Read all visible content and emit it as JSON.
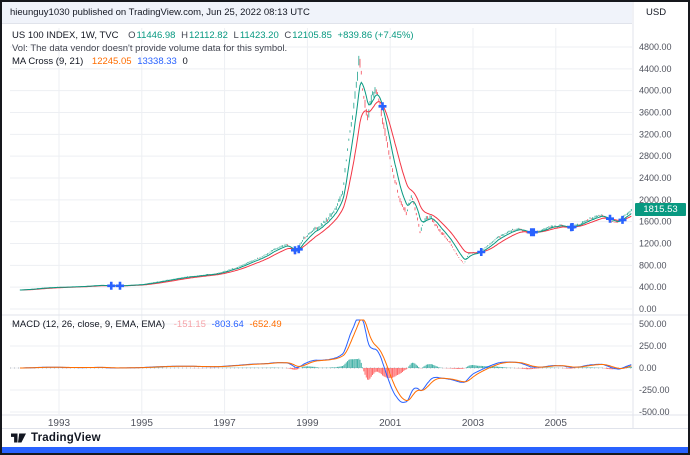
{
  "publish_bar": {
    "text": "hieunguy1030 published on TradingView.com, Jun 25, 2022 08:13 UTC"
  },
  "header": {
    "symbol": "US 100 INDEX, 1W, TVC",
    "ohlc": {
      "o_label": "O",
      "o": "11446.98",
      "h_label": "H",
      "h": "12112.82",
      "l_label": "L",
      "l": "11423.20",
      "c_label": "C",
      "c": "12105.85",
      "change": "+839.86 (+7.45%)"
    },
    "vol_note": "Vol: The data vendor doesn't provide volume data for this symbol.",
    "ma_cross": {
      "label": "MA Cross (9, 21)",
      "fast": "12245.05",
      "slow": "13338.33",
      "zero": "0"
    }
  },
  "macd_legend": {
    "label": "MACD (12, 26, close, 9, EMA, EMA)",
    "hist": "-151.15",
    "macd": "-803.64",
    "signal": "-652.49"
  },
  "axis": {
    "currency": "USD",
    "last_price": "1815.53"
  },
  "footer": {
    "brand": "TradingView"
  },
  "colors": {
    "up": "#089981",
    "down": "#F23645",
    "ma_fast": "#089981",
    "ma_slow": "#F23645",
    "macd_line": "#2962FF",
    "signal_line": "#FF6D00",
    "hist_up": "#26A69A",
    "hist_down": "#FF5252",
    "marker": "#2962FF",
    "badge": "#089981",
    "grid": "#EDEFF3",
    "separator": "#E0E3EB",
    "axis_text": "#50535E",
    "bottom_strip": "#2962FF"
  },
  "chart_data": {
    "type": "candlestick",
    "title": "US 100 INDEX, 1W, TVC",
    "timeframe": "1W",
    "price_axis_ticks": [
      4800,
      4400,
      4000,
      3600,
      3200,
      2800,
      2400,
      2000,
      1600,
      1200,
      800,
      400,
      0
    ],
    "macd_axis_ticks": [
      500,
      250,
      0,
      -250,
      -500
    ],
    "year_ticks": [
      1993,
      1995,
      1997,
      1999,
      2001,
      2003,
      2005
    ],
    "x_domain": [
      1992.1,
      2006.85
    ],
    "price_domain": [
      0,
      4800
    ],
    "macd_domain": [
      -500,
      500
    ],
    "last_price": 1815.53,
    "indicators": {
      "ma_cross_periods": [
        9,
        21
      ],
      "macd_params": [
        12,
        26,
        9
      ]
    },
    "anchors": {
      "x": [
        1992.1,
        1992.4,
        1992.7,
        1993.0,
        1993.3,
        1993.6,
        1994.0,
        1994.3,
        1994.6,
        1995.0,
        1995.4,
        1995.8,
        1996.1,
        1996.5,
        1996.8,
        1997.0,
        1997.3,
        1997.6,
        1997.9,
        1998.2,
        1998.5,
        1998.7,
        1998.9,
        1999.1,
        1999.3,
        1999.5,
        1999.7,
        1999.85,
        2000.0,
        2000.1,
        2000.2,
        2000.25,
        2000.35,
        2000.45,
        2000.55,
        2000.65,
        2000.75,
        2000.85,
        2000.95,
        2001.05,
        2001.15,
        2001.25,
        2001.4,
        2001.5,
        2001.6,
        2001.72,
        2001.85,
        2002.0,
        2002.15,
        2002.3,
        2002.5,
        2002.65,
        2002.78,
        2002.9,
        2003.1,
        2003.3,
        2003.6,
        2003.9,
        2004.1,
        2004.35,
        2004.6,
        2004.85,
        2005.1,
        2005.35,
        2005.6,
        2005.85,
        2006.1,
        2006.3,
        2006.5,
        2006.7,
        2006.85
      ],
      "close": [
        350,
        370,
        390,
        400,
        405,
        415,
        435,
        420,
        430,
        450,
        500,
        555,
        590,
        620,
        650,
        690,
        760,
        860,
        950,
        1090,
        1180,
        1020,
        1280,
        1420,
        1520,
        1650,
        1850,
        2150,
        3100,
        3600,
        4200,
        4700,
        3900,
        3500,
        3850,
        4050,
        3750,
        3300,
        2950,
        2550,
        2250,
        1950,
        1750,
        2080,
        1850,
        1420,
        1650,
        1680,
        1480,
        1350,
        1150,
        950,
        830,
        1020,
        1030,
        1120,
        1310,
        1430,
        1470,
        1390,
        1420,
        1500,
        1530,
        1490,
        1560,
        1660,
        1720,
        1620,
        1580,
        1740,
        1815
      ]
    }
  }
}
